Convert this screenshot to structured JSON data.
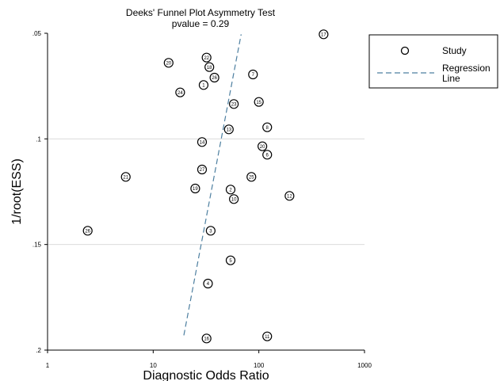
{
  "chart_data": {
    "type": "scatter",
    "title": "Deeks' Funnel Plot Asymmetry Test",
    "subtitle": "pvalue =   0.29",
    "xlabel": "Diagnostic Odds Ratio",
    "ylabel": "1/root(ESS)",
    "x_scale": "log",
    "xlim": [
      1,
      1000
    ],
    "ylim": [
      0.2,
      0.05
    ],
    "y_inverted": true,
    "x_ticks": [
      1,
      10,
      100,
      1000
    ],
    "x_tick_labels": [
      "1",
      "10",
      "100",
      "1000"
    ],
    "y_ticks": [
      0.05,
      0.1,
      0.15,
      0.2
    ],
    "y_tick_labels": [
      ".05",
      ".1",
      ".15",
      ".2"
    ],
    "grid": "horizontal at .1 and .15",
    "legend": {
      "placement": "right",
      "entries": [
        {
          "name": "Study",
          "marker": "circle"
        },
        {
          "name": "Regression Line",
          "line1": "Regression",
          "line2": "Line",
          "marker": "dashed-line"
        }
      ]
    },
    "series": [
      {
        "name": "Study",
        "points": [
          {
            "label": "17",
            "x": 410,
            "y": 0.0505
          },
          {
            "label": "22",
            "x": 32,
            "y": 0.0615
          },
          {
            "label": "20",
            "x": 14,
            "y": 0.064
          },
          {
            "label": "18",
            "x": 34,
            "y": 0.066
          },
          {
            "label": "7",
            "x": 88,
            "y": 0.0695
          },
          {
            "label": "26",
            "x": 38,
            "y": 0.071
          },
          {
            "label": "1",
            "x": 30,
            "y": 0.0745
          },
          {
            "label": "24",
            "x": 18,
            "y": 0.078
          },
          {
            "label": "15",
            "x": 100,
            "y": 0.0825
          },
          {
            "label": "23",
            "x": 58,
            "y": 0.0835
          },
          {
            "label": "8",
            "x": 120,
            "y": 0.0945
          },
          {
            "label": "13",
            "x": 52,
            "y": 0.0955
          },
          {
            "label": "14",
            "x": 29,
            "y": 0.1015
          },
          {
            "label": "20",
            "x": 108,
            "y": 0.1035
          },
          {
            "label": "6",
            "x": 120,
            "y": 0.1075
          },
          {
            "label": "27",
            "x": 29,
            "y": 0.1145
          },
          {
            "label": "21",
            "x": 5.5,
            "y": 0.118
          },
          {
            "label": "25",
            "x": 85,
            "y": 0.118
          },
          {
            "label": "19",
            "x": 25,
            "y": 0.1235
          },
          {
            "label": "2",
            "x": 54,
            "y": 0.124
          },
          {
            "label": "12",
            "x": 195,
            "y": 0.127
          },
          {
            "label": "10",
            "x": 58,
            "y": 0.1285
          },
          {
            "label": "26",
            "x": 2.4,
            "y": 0.1435
          },
          {
            "label": "3",
            "x": 35,
            "y": 0.1435
          },
          {
            "label": "5",
            "x": 54,
            "y": 0.1575
          },
          {
            "label": "4",
            "x": 33,
            "y": 0.1685
          },
          {
            "label": "16",
            "x": 32,
            "y": 0.1945
          },
          {
            "label": "11",
            "x": 120,
            "y": 0.1935
          }
        ]
      }
    ],
    "regression_line": {
      "name": "Regression Line",
      "from": {
        "x": 19.5,
        "y": 0.193
      },
      "to": {
        "x": 68,
        "y": 0.0505
      },
      "style": "dashed",
      "color": "#4d7fa0"
    }
  }
}
